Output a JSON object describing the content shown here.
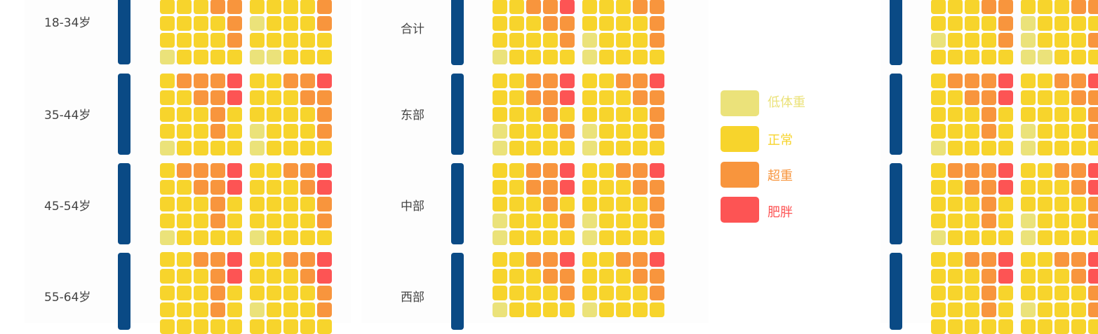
{
  "colors": {
    "low": "#ebe27a",
    "normal": "#f7d42c",
    "over": "#f8953d",
    "obese": "#fd5454",
    "bar": "#0a4a85",
    "text": "#444444"
  },
  "legend": [
    {
      "key": "low",
      "label": "低体重"
    },
    {
      "key": "normal",
      "label": "正常"
    },
    {
      "key": "over",
      "label": "超重"
    },
    {
      "key": "obese",
      "label": "肥胖"
    }
  ],
  "chart_data": [
    {
      "type": "waffle",
      "rows": [
        "18-34岁",
        "35-44岁",
        "45-54岁",
        "55-64岁"
      ],
      "groups": [
        [
          [
            "NNNOO",
            "NNNNO",
            "NNNNO",
            "LNNNN"
          ],
          [
            "NNNNO",
            "LNNNO",
            "NNNNN",
            "LLNNN"
          ]
        ],
        [
          [
            "NOOOB",
            "NNOOB",
            "NNNON",
            "NNNON",
            "LNNNN"
          ],
          [
            "NNOOB",
            "NNNOO",
            "NNNNO",
            "LNNNO",
            "LNNNN"
          ]
        ],
        [
          [
            "NOOOB",
            "NNOOB",
            "NNNON",
            "NNNON",
            "LNNNN"
          ],
          [
            "NNOOB",
            "NNNOB",
            "NNNNO",
            "NNNNO",
            "LNNNN"
          ]
        ],
        [
          [
            "NNOOB",
            "NNNOB",
            "NNNON",
            "NNNON",
            "NNNNN"
          ],
          [
            "NNOOB",
            "NNNOB",
            "NNNNO",
            "LNNNO",
            "NNNNN"
          ]
        ]
      ]
    },
    {
      "type": "waffle",
      "rows": [
        "合计",
        "东部",
        "中部",
        "西部"
      ],
      "groups": [
        [
          [
            "NNOOB",
            "NNNOO",
            "NNNNO",
            "LNNNN"
          ],
          [
            "NNNOO",
            "NNNNO",
            "LNNNO",
            "LNNNN"
          ]
        ],
        [
          [
            "NNOOB",
            "NNOOB",
            "NNNON",
            "LNNNO",
            "LNNNN"
          ],
          [
            "NNOOB",
            "NNNOO",
            "NNNNO",
            "LNNNO",
            "LNNNN"
          ]
        ],
        [
          [
            "NNOOB",
            "NNOOB",
            "NNNON",
            "LNNNO",
            "LNNNN"
          ],
          [
            "NNOOB",
            "NNNOO",
            "NNNNO",
            "LNNNO",
            "LNNNN"
          ]
        ],
        [
          [
            "NNOOB",
            "NNNOO",
            "NNNNO",
            "LNNNN"
          ],
          [
            "NNOOB",
            "NNNOO",
            "NNNNO",
            "LNNNN"
          ]
        ]
      ]
    },
    {
      "type": "waffle",
      "rows": [
        "",
        "",
        "",
        ""
      ],
      "groups": [
        [
          [
            "NNNOO",
            "NNNNO",
            "LNNNO",
            "NNNNN"
          ],
          [
            "NNNOO",
            "LNNNN",
            "LNNNO",
            "LLNNN"
          ]
        ],
        [
          [
            "NOOOB",
            "NNOOB",
            "NNNON",
            "NNNON",
            "LNNNN"
          ],
          [
            "NNOOB",
            "NNNOO",
            "NNNNO",
            "LNNNO",
            "LNNNN"
          ]
        ],
        [
          [
            "NOOOB",
            "NNOOB",
            "NNNON",
            "NNNON",
            "LNNNN"
          ],
          [
            "NNOOB",
            "NNNOB",
            "NNNNO",
            "LNNNO",
            "LNNNN"
          ]
        ],
        [
          [
            "NNOOB",
            "NNNOB",
            "NNNON",
            "NNNON",
            "NNNNN"
          ],
          [
            "NNOOB",
            "NNNOB",
            "NNNNO",
            "LNNNO",
            "NNNNN"
          ]
        ]
      ]
    }
  ]
}
